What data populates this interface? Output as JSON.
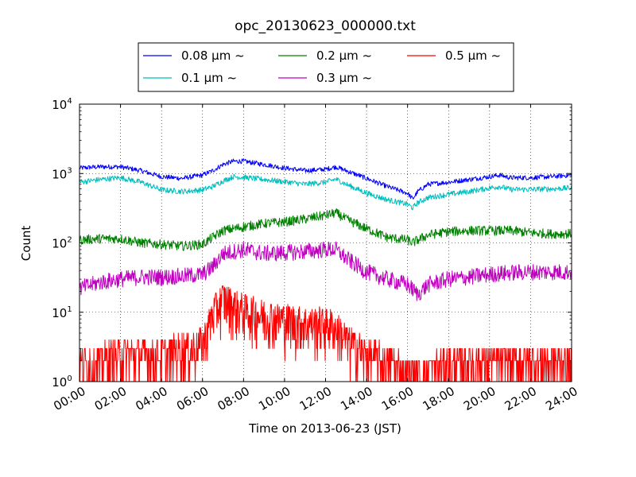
{
  "chart_data": {
    "type": "line",
    "title": "opc_20130623_000000.txt",
    "xlabel": "Time on 2013-06-23 (JST)",
    "ylabel": "Count",
    "y_scale": "log",
    "ylim": [
      1,
      10000
    ],
    "xlim": [
      "00:00",
      "24:00"
    ],
    "x_tick_labels": [
      "00:00",
      "02:00",
      "04:00",
      "06:00",
      "08:00",
      "10:00",
      "12:00",
      "14:00",
      "16:00",
      "18:00",
      "20:00",
      "22:00",
      "24:00"
    ],
    "y_ticks": [
      {
        "base": "10",
        "exp": "0",
        "value": 1
      },
      {
        "base": "10",
        "exp": "1",
        "value": 10
      },
      {
        "base": "10",
        "exp": "2",
        "value": 100
      },
      {
        "base": "10",
        "exp": "3",
        "value": 1000
      },
      {
        "base": "10",
        "exp": "4",
        "value": 10000
      }
    ],
    "grid": true,
    "legend_position": "top-center",
    "series": [
      {
        "name": "0.08 μm ~",
        "color": "#0000ff",
        "x": [
          "00:00",
          "01:00",
          "02:00",
          "03:00",
          "04:00",
          "05:00",
          "06:00",
          "06:30",
          "07:00",
          "07:30",
          "08:00",
          "09:00",
          "10:00",
          "11:00",
          "12:00",
          "12:30",
          "13:00",
          "14:00",
          "15:00",
          "16:00",
          "16:15",
          "16:30",
          "17:00",
          "18:00",
          "19:00",
          "20:00",
          "20:30",
          "21:00",
          "22:00",
          "23:00",
          "24:00"
        ],
        "y": [
          1200,
          1250,
          1250,
          1100,
          900,
          850,
          950,
          1100,
          1350,
          1500,
          1500,
          1350,
          1200,
          1100,
          1150,
          1250,
          1100,
          850,
          650,
          520,
          430,
          550,
          700,
          750,
          820,
          900,
          950,
          870,
          870,
          900,
          950
        ]
      },
      {
        "name": "0.1 μm ~",
        "color": "#00bfbf",
        "x": [
          "00:00",
          "01:00",
          "02:00",
          "03:00",
          "04:00",
          "05:00",
          "06:00",
          "06:30",
          "07:00",
          "07:30",
          "08:00",
          "09:00",
          "10:00",
          "11:00",
          "12:00",
          "12:30",
          "13:00",
          "14:00",
          "15:00",
          "16:00",
          "16:15",
          "16:30",
          "17:00",
          "18:00",
          "19:00",
          "20:00",
          "20:30",
          "21:00",
          "22:00",
          "23:00",
          "24:00"
        ],
        "y": [
          750,
          820,
          870,
          750,
          580,
          550,
          580,
          650,
          780,
          900,
          880,
          820,
          760,
          700,
          750,
          830,
          700,
          520,
          420,
          360,
          320,
          380,
          450,
          500,
          550,
          620,
          650,
          590,
          590,
          600,
          620
        ]
      },
      {
        "name": "0.2 μm ~",
        "color": "#008000",
        "x": [
          "00:00",
          "01:00",
          "02:00",
          "03:00",
          "04:00",
          "05:00",
          "06:00",
          "06:30",
          "07:00",
          "08:00",
          "09:00",
          "10:00",
          "11:00",
          "12:00",
          "12:30",
          "13:00",
          "14:00",
          "15:00",
          "16:00",
          "16:15",
          "16:30",
          "17:00",
          "18:00",
          "19:00",
          "20:00",
          "21:00",
          "22:00",
          "23:00",
          "24:00"
        ],
        "y": [
          110,
          115,
          115,
          100,
          95,
          90,
          95,
          120,
          150,
          170,
          190,
          200,
          220,
          250,
          270,
          220,
          160,
          120,
          110,
          100,
          110,
          130,
          145,
          150,
          150,
          150,
          140,
          135,
          135
        ]
      },
      {
        "name": "0.3 μm ~",
        "color": "#bf00bf",
        "x": [
          "00:00",
          "01:00",
          "02:00",
          "03:00",
          "04:00",
          "05:00",
          "06:00",
          "06:30",
          "07:00",
          "08:00",
          "09:00",
          "10:00",
          "11:00",
          "12:00",
          "12:30",
          "13:00",
          "14:00",
          "15:00",
          "16:00",
          "16:30",
          "17:00",
          "18:00",
          "19:00",
          "20:00",
          "21:00",
          "22:00",
          "23:00",
          "24:00"
        ],
        "y": [
          22,
          27,
          30,
          32,
          32,
          33,
          35,
          45,
          70,
          80,
          70,
          72,
          75,
          80,
          80,
          60,
          38,
          30,
          25,
          18,
          25,
          30,
          32,
          35,
          37,
          38,
          38,
          38
        ]
      },
      {
        "name": "0.5 μm ~",
        "color": "#ff0000",
        "x": [
          "00:00",
          "01:00",
          "02:00",
          "03:00",
          "04:00",
          "05:00",
          "06:00",
          "06:30",
          "07:00",
          "07:30",
          "08:00",
          "09:00",
          "10:00",
          "11:00",
          "12:00",
          "12:30",
          "13:00",
          "14:00",
          "15:00",
          "16:00",
          "17:00",
          "18:00",
          "19:00",
          "20:00",
          "21:00",
          "22:00",
          "23:00",
          "24:00"
        ],
        "y": [
          2,
          2,
          2.5,
          2.5,
          2.5,
          3,
          3.5,
          10,
          16,
          13,
          11,
          9,
          8,
          7,
          7,
          6,
          4,
          2.5,
          2,
          1.5,
          1.5,
          1.8,
          2,
          2,
          2,
          2,
          2,
          2
        ]
      }
    ]
  }
}
